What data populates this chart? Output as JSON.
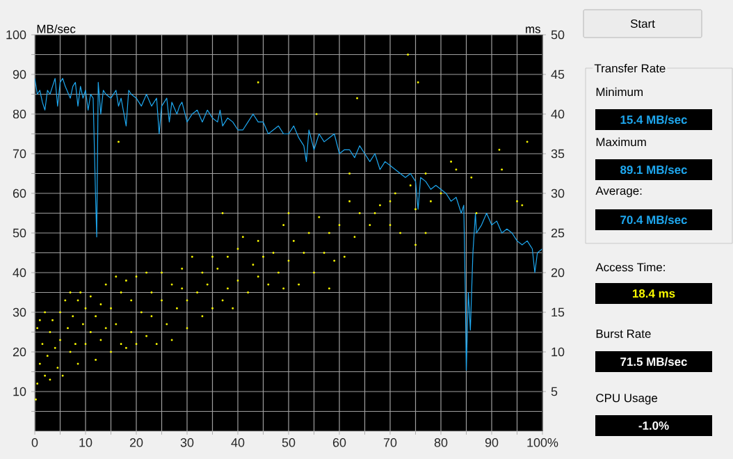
{
  "chart_data": {
    "type": "line",
    "ylabel": "MB/sec",
    "y2label": "ms",
    "xlim": [
      0,
      100
    ],
    "ylim": [
      0,
      100
    ],
    "y2lim": [
      0,
      50
    ],
    "xticks": [
      0,
      {
        "value": 5,
        "label": null
      },
      10,
      {
        "value": 15,
        "label": null
      },
      20,
      {
        "value": 25,
        "label": null
      },
      30,
      {
        "value": 35,
        "label": null
      },
      40,
      {
        "value": 45,
        "label": null
      },
      50,
      {
        "value": 55,
        "label": null
      },
      60,
      {
        "value": 65,
        "label": null
      },
      70,
      {
        "value": 75,
        "label": null
      },
      80,
      {
        "value": 85,
        "label": null
      },
      90,
      {
        "value": 95,
        "label": null
      },
      {
        "value": 100,
        "label": "100%"
      }
    ],
    "yticks": [
      {
        "value": 5,
        "label": null
      },
      10,
      {
        "value": 15,
        "label": null
      },
      20,
      {
        "value": 25,
        "label": null
      },
      30,
      {
        "value": 35,
        "label": null
      },
      40,
      {
        "value": 45,
        "label": null
      },
      50,
      {
        "value": 55,
        "label": null
      },
      60,
      {
        "value": 65,
        "label": null
      },
      70,
      {
        "value": 75,
        "label": null
      },
      80,
      {
        "value": 85,
        "label": null
      },
      90,
      {
        "value": 95,
        "label": null
      },
      100
    ],
    "y2ticks": [
      5,
      10,
      15,
      20,
      25,
      30,
      35,
      40,
      45,
      50
    ],
    "grid": true,
    "series": [
      {
        "color": "#1ea8f0",
        "marker": "none",
        "x": [
          0,
          0.5,
          1,
          1.5,
          2,
          2.5,
          3,
          3.5,
          4,
          4.5,
          5,
          5.5,
          6,
          7,
          7.5,
          8,
          8.5,
          9,
          9.5,
          10,
          10.5,
          11,
          11.5,
          12,
          12.2,
          12.5,
          13,
          13.5,
          14,
          15,
          16,
          16.5,
          17,
          18,
          18.5,
          19,
          20,
          21,
          22,
          23,
          24,
          24.5,
          25,
          26,
          26.5,
          27,
          28,
          28.5,
          29,
          30,
          31,
          32,
          33,
          34,
          35,
          36,
          36.5,
          37,
          38,
          39,
          40,
          41,
          42,
          43,
          44,
          45,
          46,
          47,
          48,
          49,
          50,
          51,
          52,
          53,
          53.5,
          54,
          55,
          56,
          57,
          58,
          59,
          60,
          61,
          62,
          63,
          64,
          65,
          66,
          67,
          68,
          69,
          70,
          71,
          72,
          73,
          74,
          75,
          75.5,
          76,
          77,
          78,
          79,
          80,
          81,
          82,
          83,
          84,
          84.5,
          84.8,
          85,
          85.4,
          85.8,
          86.3,
          86.8,
          87,
          88,
          89,
          90,
          91,
          92,
          93,
          94,
          95,
          96,
          97,
          98,
          98.5,
          99,
          100
        ],
        "values": [
          89,
          85,
          86,
          83,
          81,
          86,
          85,
          87,
          89,
          82,
          88,
          89,
          87,
          84,
          87,
          88,
          82,
          87,
          84,
          86,
          81,
          85,
          84,
          58,
          49,
          88,
          80,
          86,
          85,
          84,
          86,
          82,
          84,
          77,
          86,
          85,
          84,
          82,
          85,
          82,
          84,
          75,
          82,
          84,
          78,
          83,
          80,
          82,
          83,
          78,
          80,
          81,
          78,
          81,
          79,
          78,
          81,
          77,
          79,
          78,
          76,
          76,
          78,
          80,
          78,
          78,
          75,
          76,
          77,
          75,
          75,
          77,
          74,
          72,
          68,
          76,
          71,
          75,
          73,
          74,
          75,
          70,
          71,
          71,
          69,
          72,
          70,
          68,
          70,
          66,
          68,
          67,
          66,
          65,
          64,
          65,
          63,
          56,
          64,
          63,
          61,
          62,
          61,
          60,
          58,
          59,
          55,
          57,
          35,
          15.4,
          35,
          25.5,
          45,
          55,
          50,
          52,
          55,
          52,
          53,
          50,
          51,
          50,
          48,
          47,
          48,
          46,
          40,
          45,
          46
        ]
      },
      {
        "type": "scatter",
        "axis": "y2",
        "color": "#ffff00",
        "marker": "square",
        "x": [
          0.2,
          0.5,
          0.5,
          1,
          1,
          1.5,
          2,
          2,
          2.5,
          3,
          3,
          3.5,
          4,
          4.5,
          5,
          5,
          5.5,
          6,
          6.5,
          7,
          7,
          7.5,
          8,
          8.5,
          8.5,
          9,
          9.5,
          10,
          10,
          11,
          11,
          12,
          12,
          13,
          13,
          14,
          14,
          15,
          15,
          16,
          16,
          16.5,
          17,
          17,
          18,
          18,
          19,
          19,
          20,
          20,
          21,
          22,
          22,
          23,
          23,
          24,
          25,
          25,
          26,
          27,
          27,
          28,
          29,
          29,
          30,
          30,
          31,
          32,
          33,
          33,
          34,
          35,
          35,
          36,
          37,
          37,
          38,
          38,
          39,
          40,
          40,
          41,
          42,
          43,
          44,
          44,
          44,
          45,
          46,
          47,
          48,
          49,
          49,
          50,
          50,
          51,
          52,
          53,
          54,
          55,
          55.5,
          56,
          57,
          58,
          58,
          59,
          60,
          61,
          62,
          62,
          63,
          63.5,
          64,
          66,
          67,
          68,
          70,
          70,
          71,
          72,
          73.5,
          74,
          75,
          75,
          75.5,
          77,
          77,
          78,
          80,
          82,
          83,
          86,
          87,
          91.5,
          92,
          95,
          96,
          97
        ],
        "values": [
          4,
          6,
          13,
          8.5,
          14,
          11,
          15,
          7,
          9.5,
          12.5,
          6.5,
          14,
          10.5,
          8,
          15,
          11.5,
          7,
          16.5,
          13,
          10,
          17.5,
          14.5,
          11,
          8.5,
          16.5,
          17.5,
          13.5,
          11,
          15.5,
          12.5,
          17,
          9,
          14.5,
          11.5,
          16,
          13,
          18.5,
          10,
          15.5,
          19.5,
          13.5,
          36.5,
          11,
          17.5,
          10.5,
          19,
          12.5,
          16.5,
          19.5,
          11,
          15,
          12,
          20,
          14.5,
          17.5,
          11,
          16.5,
          20,
          13.5,
          18.5,
          11.5,
          15.5,
          18,
          20.5,
          13,
          16.5,
          22,
          17.5,
          14.5,
          20,
          18.5,
          22,
          15.5,
          20.5,
          16.5,
          27.5,
          18,
          22,
          15.5,
          19,
          23,
          24.5,
          17.5,
          21,
          19.5,
          24,
          44,
          22,
          18.5,
          22.5,
          20,
          18,
          26,
          27.5,
          21.5,
          24,
          18.5,
          22.5,
          25,
          20,
          40,
          27,
          22.5,
          25,
          18,
          21.5,
          26,
          22,
          29,
          32.5,
          24.5,
          42,
          27.5,
          26,
          27.5,
          28.5,
          26,
          29,
          30,
          25,
          47.5,
          31,
          28,
          23.5,
          44,
          32.5,
          25,
          29,
          30,
          34,
          33,
          32,
          27.5,
          35.5,
          33,
          29,
          28.5,
          36.5
        ]
      }
    ],
    "annotations": [
      "Start",
      "Transfer Rate",
      "Minimum",
      "15.4 MB/sec",
      "Maximum",
      "89.1 MB/sec",
      "Average:",
      "70.4 MB/sec",
      "Access Time:",
      "18.4 ms",
      "Burst Rate",
      "71.5 MB/sec",
      "CPU Usage",
      "-1.0%"
    ]
  }
}
